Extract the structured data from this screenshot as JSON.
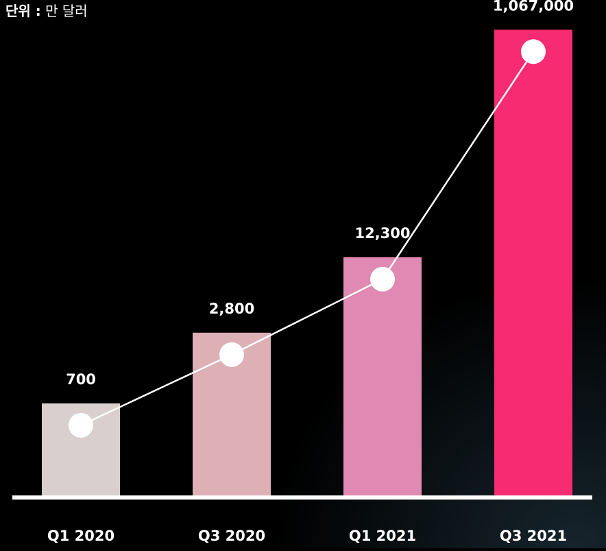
{
  "chart_data": {
    "type": "bar",
    "unit_prefix": "단위 :",
    "unit": "만 달러",
    "categories": [
      "Q1 2020",
      "Q3 2020",
      "Q1 2021",
      "Q3 2021"
    ],
    "values": [
      700,
      2800,
      12300,
      1067000
    ],
    "value_labels": [
      "700",
      "2,800",
      "12,300",
      "1,067,000"
    ],
    "colors": [
      "#d9cfcf",
      "#dcb0b5",
      "#e089b2",
      "#f72b72"
    ],
    "line_color": "#ffffff",
    "log": true,
    "ylim": [
      115,
      1500000
    ]
  }
}
